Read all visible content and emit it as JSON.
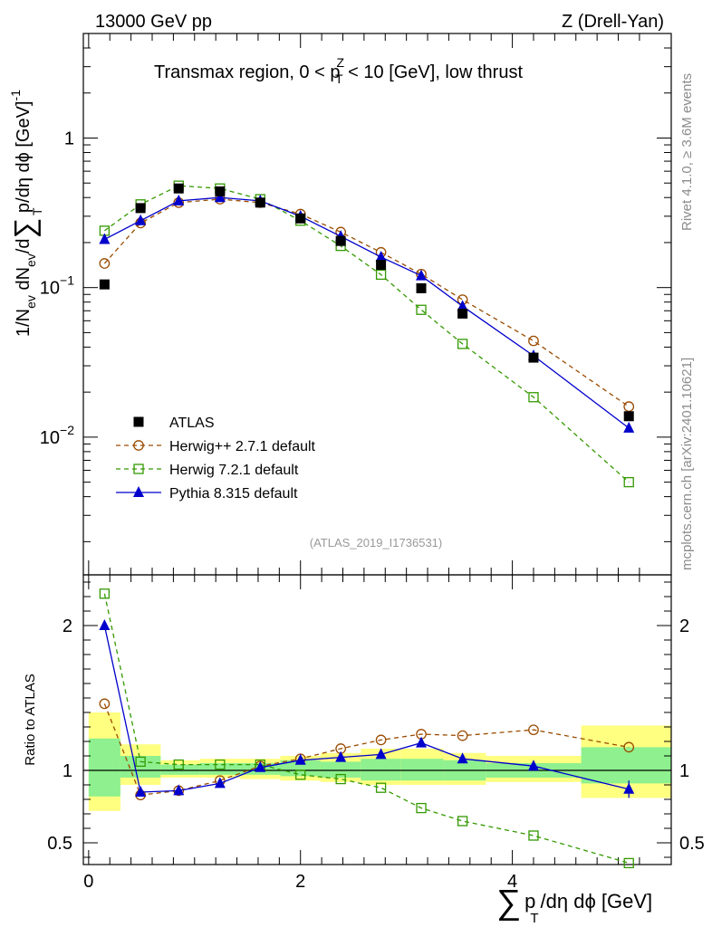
{
  "header": {
    "energy_label": "13000 GeV pp",
    "process_label": "Z (Drell-Yan)"
  },
  "side": {
    "rivet_label": "Rivet 4.1.0, ≥ 3.6M events",
    "mcplots_label": "mcplots.cern.ch [arXiv:2401.10621]"
  },
  "analysis_tag": "(ATLAS_2019_I1736531)",
  "chart_data": [
    {
      "type": "scatter",
      "panel": "main",
      "title_parts": [
        "Transmax region, 0 < p",
        "Z",
        "T",
        " < 10 [GeV], low thrust"
      ],
      "ylabel_parts": [
        "1/N",
        "ev",
        " dN",
        "ev",
        "/d",
        "∑",
        " p",
        "T",
        " /dη dϕ  [GeV]",
        "-1"
      ],
      "yscale": "log",
      "ylim": [
        0.0012,
        5
      ],
      "xlim": [
        -0.05,
        5.5
      ],
      "y_ticks": [
        {
          "value": 1,
          "base": "1",
          "exp": ""
        },
        {
          "value": 0.1,
          "base": "10",
          "exp": "−1"
        },
        {
          "value": 0.01,
          "base": "10",
          "exp": "−2"
        }
      ],
      "x": [
        0.15,
        0.49,
        0.85,
        1.24,
        1.62,
        2.0,
        2.38,
        2.76,
        3.14,
        3.53,
        4.2,
        5.1
      ],
      "series": [
        {
          "name": "ATLAS",
          "color": "#000000",
          "marker": "square-filled",
          "line": "none",
          "values": [
            0.105,
            0.34,
            0.46,
            0.44,
            0.37,
            0.29,
            0.205,
            0.142,
            0.099,
            0.067,
            0.034,
            0.0138
          ]
        },
        {
          "name": "Herwig++ 2.7.1 default",
          "color": "#9a4b00",
          "marker": "circle-open",
          "line": "dashed",
          "values": [
            0.145,
            0.27,
            0.37,
            0.39,
            0.37,
            0.31,
            0.235,
            0.172,
            0.123,
            0.083,
            0.044,
            0.016
          ]
        },
        {
          "name": "Herwig 7.2.1 default",
          "color": "#339900",
          "marker": "square-open",
          "line": "dashed",
          "values": [
            0.24,
            0.36,
            0.48,
            0.46,
            0.39,
            0.28,
            0.19,
            0.122,
            0.071,
            0.042,
            0.0185,
            0.005
          ]
        },
        {
          "name": "Pythia 8.315 default",
          "color": "#0000cc",
          "marker": "triangle-filled",
          "line": "solid",
          "values": [
            0.21,
            0.28,
            0.38,
            0.4,
            0.38,
            0.3,
            0.22,
            0.16,
            0.12,
            0.075,
            0.035,
            0.0115
          ]
        }
      ]
    },
    {
      "type": "line",
      "panel": "ratio",
      "ylabel": "Ratio to ATLAS",
      "ylim": [
        0.35,
        2.35
      ],
      "xlim": [
        -0.05,
        5.5
      ],
      "y_ticks": [
        {
          "value": 0.5,
          "label": "0.5"
        },
        {
          "value": 1,
          "label": "1"
        },
        {
          "value": 2,
          "label": "2"
        }
      ],
      "x_ticks": [
        {
          "value": 0,
          "label": "0"
        },
        {
          "value": 2,
          "label": "2"
        },
        {
          "value": 4,
          "label": "4"
        }
      ],
      "xlabel_parts": [
        "∑",
        "p",
        "T",
        "/dη dϕ [GeV]"
      ],
      "x": [
        0.15,
        0.49,
        0.85,
        1.24,
        1.62,
        2.0,
        2.38,
        2.76,
        3.14,
        3.53,
        4.2,
        5.1
      ],
      "bands": {
        "edges": [
          0.0,
          0.3,
          0.68,
          1.05,
          1.43,
          1.81,
          2.19,
          2.57,
          2.95,
          3.35,
          3.75,
          4.65,
          5.5
        ],
        "inner": [
          [
            0.82,
            1.22
          ],
          [
            0.95,
            1.1
          ],
          [
            0.97,
            1.04
          ],
          [
            0.97,
            1.05
          ],
          [
            0.97,
            1.05
          ],
          [
            0.96,
            1.07
          ],
          [
            0.95,
            1.06
          ],
          [
            0.93,
            1.08
          ],
          [
            0.93,
            1.08
          ],
          [
            0.93,
            1.07
          ],
          [
            0.95,
            1.05
          ],
          [
            0.91,
            1.16
          ]
        ],
        "outer": [
          [
            0.72,
            1.4
          ],
          [
            0.9,
            1.18
          ],
          [
            0.95,
            1.07
          ],
          [
            0.95,
            1.08
          ],
          [
            0.94,
            1.08
          ],
          [
            0.93,
            1.1
          ],
          [
            0.92,
            1.12
          ],
          [
            0.9,
            1.15
          ],
          [
            0.9,
            1.15
          ],
          [
            0.9,
            1.12
          ],
          [
            0.92,
            1.1
          ],
          [
            0.81,
            1.31
          ]
        ],
        "inner_color": "#8ef08e",
        "outer_color": "#ffff80"
      },
      "series": [
        {
          "name": "Herwig++ 2.7.1 default",
          "color": "#9a4b00",
          "marker": "circle-open",
          "line": "dashed",
          "values": [
            1.46,
            0.83,
            0.86,
            0.93,
            1.03,
            1.08,
            1.15,
            1.21,
            1.25,
            1.24,
            1.28,
            1.16
          ]
        },
        {
          "name": "Herwig 7.2.1 default",
          "color": "#339900",
          "marker": "square-open",
          "line": "dashed",
          "values": [
            2.22,
            1.06,
            1.04,
            1.04,
            1.04,
            0.97,
            0.94,
            0.88,
            0.74,
            0.65,
            0.55,
            0.36
          ]
        },
        {
          "name": "Pythia 8.315 default",
          "color": "#0000cc",
          "marker": "triangle-filled",
          "line": "solid",
          "values": [
            2.0,
            0.85,
            0.86,
            0.91,
            1.02,
            1.07,
            1.09,
            1.11,
            1.19,
            1.08,
            1.03,
            0.87
          ]
        }
      ]
    }
  ]
}
